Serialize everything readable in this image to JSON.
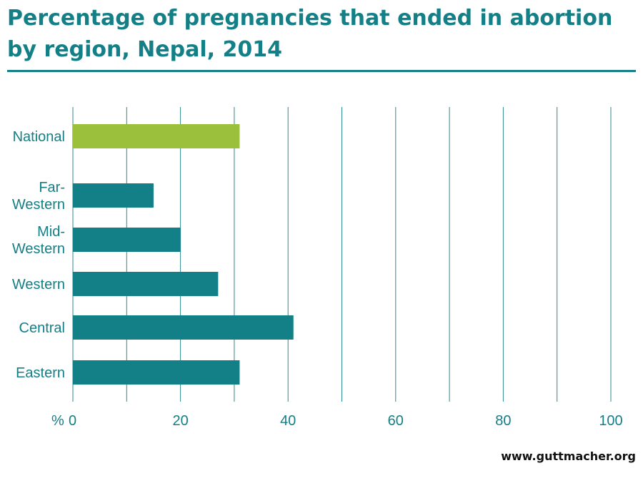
{
  "header": {
    "title_line1": "Percentage of pregnancies that ended in abortion",
    "title_line2": "by region, Nepal, 2014"
  },
  "footer": {
    "source": "www.guttmacher.org"
  },
  "colors": {
    "primary": "#137f86",
    "highlight": "#9bc13c",
    "grid": "#2f8a90"
  },
  "chart_data": {
    "type": "bar",
    "orientation": "horizontal",
    "title": "Percentage of pregnancies that ended in abortion by region, Nepal, 2014",
    "categories": [
      "National",
      "Far-Western",
      "Mid-Western",
      "Western",
      "Central",
      "Eastern"
    ],
    "category_lines": [
      [
        "National"
      ],
      [
        "Far-",
        "Western"
      ],
      [
        "Mid-",
        "Western"
      ],
      [
        "Western"
      ],
      [
        "Central"
      ],
      [
        "Eastern"
      ]
    ],
    "values": [
      31,
      15,
      20,
      27,
      41,
      31
    ],
    "highlight_category": "National",
    "xlim": [
      0,
      100
    ],
    "xticks": [
      0,
      20,
      40,
      60,
      80,
      100
    ],
    "xunit": "%",
    "grid_step": 10,
    "grid": true
  }
}
